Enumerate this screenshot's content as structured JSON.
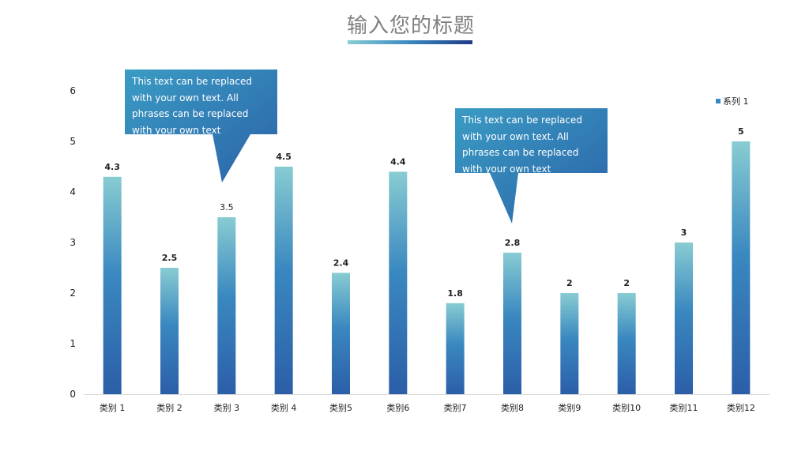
{
  "slide": {
    "title": "输入您的标题"
  },
  "callouts": [
    {
      "text": "This text can be replaced with your own text. All phrases can be replaced with your own text"
    },
    {
      "text": "This text can be replaced with your own text. All phrases can be replaced with your own text"
    }
  ],
  "colors": {
    "bar_top": "#88ccd2",
    "bar_mid": "#3a88c0",
    "bar_bottom": "#2b5ea8",
    "callout_light": "#3a9cc4",
    "callout_dark": "#2b62a8",
    "axis_text": "#222222"
  },
  "chart_data": {
    "type": "bar",
    "categories": [
      "类别 1",
      "类别 2",
      "类别 3",
      "类别 4",
      "类别5",
      "类别6",
      "类别7",
      "类别8",
      "类别9",
      "类别10",
      "类别11",
      "类别12"
    ],
    "series": [
      {
        "name": "系列 1",
        "values": [
          4.3,
          2.5,
          3.5,
          4.5,
          2.4,
          4.4,
          1.8,
          2.8,
          2,
          2,
          3,
          5
        ]
      }
    ],
    "data_labels": [
      "4.3",
      "2.5",
      "3.5",
      "4.5",
      "2.4",
      "4.4",
      "1.8",
      "2.8",
      "2",
      "2",
      "3",
      "5"
    ],
    "ylim": [
      0,
      6
    ],
    "yticks": [
      "0",
      "1",
      "2",
      "3",
      "4",
      "5",
      "6"
    ],
    "grid": false,
    "legend_position": "top-right"
  }
}
